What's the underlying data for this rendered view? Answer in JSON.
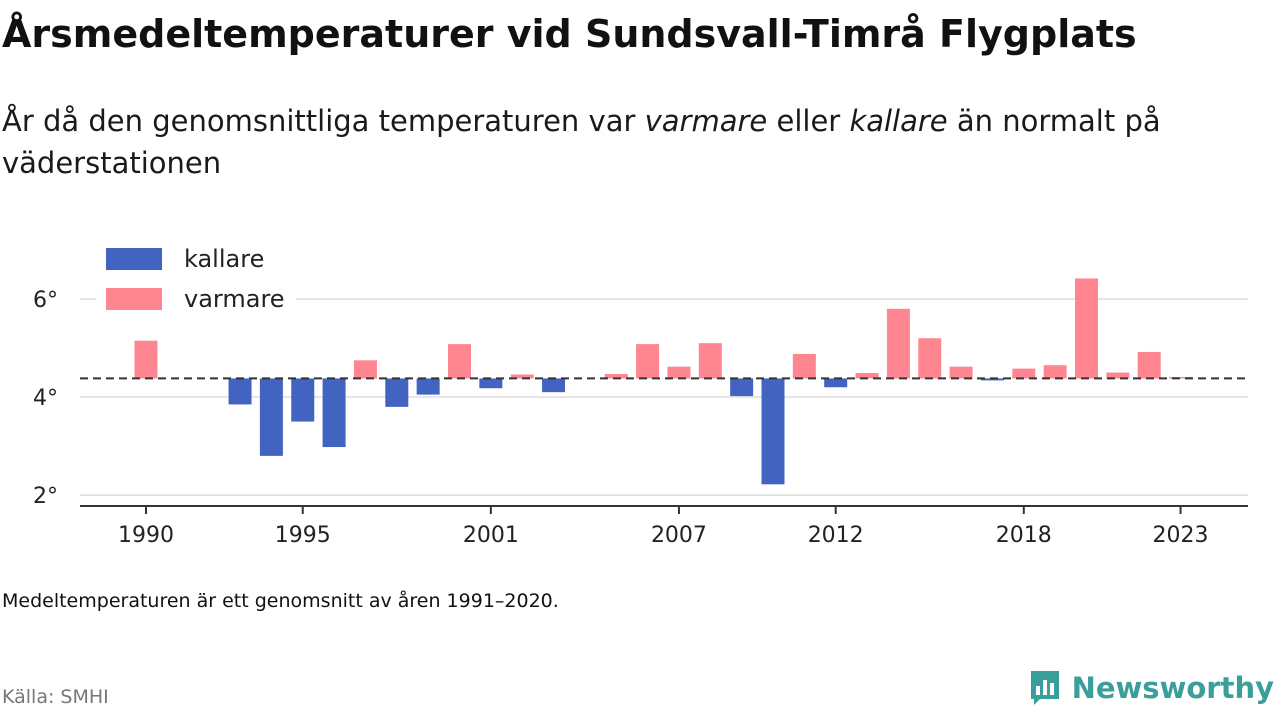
{
  "header": {
    "title": "Årsmedeltemperaturer vid Sundsvall-Timrå Flygplats",
    "subtitle_before": "År då den genomsnittliga temperaturen var ",
    "subtitle_warmer": "varmare",
    "subtitle_middle": " eller ",
    "subtitle_colder": "kallare",
    "subtitle_after": " än normalt på väderstationen"
  },
  "footer": {
    "note": "Medeltemperaturen är ett genomsnitt av åren 1991–2020.",
    "source": "Källa: SMHI",
    "brand": "Newsworthy"
  },
  "chart_data": {
    "type": "bar",
    "baseline": 4.38,
    "ylim": [
      1.9,
      7
    ],
    "yticks": [
      2,
      4,
      6
    ],
    "ytick_labels": [
      "2°",
      "4°",
      "6°"
    ],
    "xticks": [
      1990,
      1995,
      2001,
      2007,
      2012,
      2018,
      2023
    ],
    "xtick_labels": [
      "1990",
      "1995",
      "2001",
      "2007",
      "2012",
      "2018",
      "2023"
    ],
    "legend": {
      "placement": "top-left",
      "entries": [
        {
          "label": "kallare",
          "color": "#4263c0"
        },
        {
          "label": "varmare",
          "color": "#ff8591"
        }
      ]
    },
    "colors": {
      "colder": "#4263c0",
      "warmer": "#ff8591",
      "baseline": "#333333"
    },
    "years": [
      1990,
      1991,
      1992,
      1993,
      1994,
      1995,
      1996,
      1997,
      1998,
      1999,
      2000,
      2001,
      2002,
      2003,
      2004,
      2005,
      2006,
      2007,
      2008,
      2009,
      2010,
      2011,
      2012,
      2013,
      2014,
      2015,
      2016,
      2017,
      2018,
      2019,
      2020,
      2021,
      2022,
      2023
    ],
    "values": [
      5.15,
      4.38,
      4.38,
      3.85,
      2.8,
      3.5,
      2.98,
      4.75,
      3.8,
      4.05,
      5.08,
      4.18,
      4.46,
      4.1,
      4.38,
      4.47,
      5.08,
      4.62,
      5.1,
      4.02,
      2.22,
      4.88,
      4.2,
      4.49,
      5.8,
      5.2,
      4.62,
      4.34,
      4.58,
      4.65,
      6.42,
      4.5,
      4.92,
      4.41
    ]
  }
}
